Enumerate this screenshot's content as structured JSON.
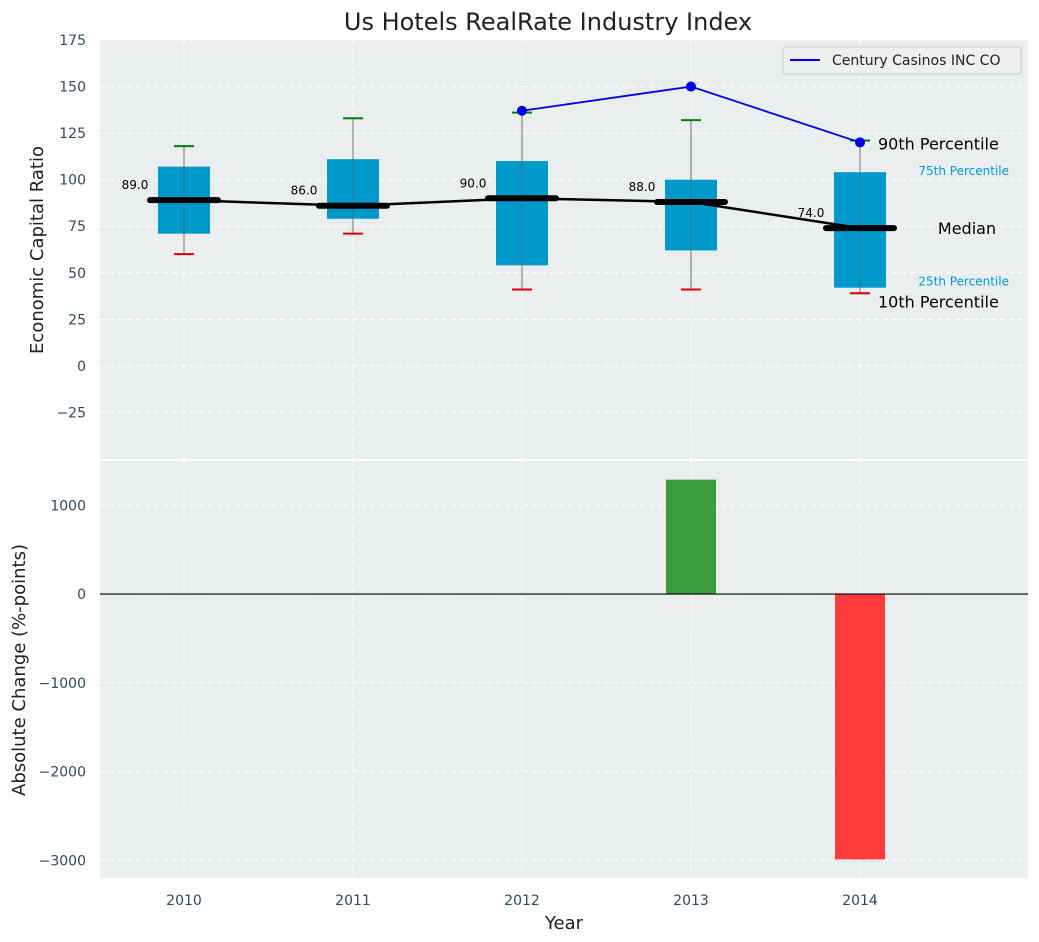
{
  "chart_data": [
    {
      "type": "box",
      "title": "Us Hotels RealRate Industry Index",
      "ylabel": "Economic Capital Ratio",
      "ylim": [
        -50,
        175
      ],
      "yticks": [
        -25,
        0,
        25,
        50,
        75,
        100,
        125,
        150,
        175
      ],
      "ytick_labels": [
        "−25",
        "0",
        "25",
        "50",
        "75",
        "100",
        "125",
        "150",
        "175"
      ],
      "categories": [
        "2010",
        "2011",
        "2012",
        "2013",
        "2014"
      ],
      "boxes": [
        {
          "year": "2010",
          "p10": 60,
          "p25": 71,
          "median": 89,
          "p75": 107,
          "p90": 118,
          "median_label": "89.0"
        },
        {
          "year": "2011",
          "p10": 71,
          "p25": 79,
          "median": 86,
          "p75": 111,
          "p90": 133,
          "median_label": "86.0"
        },
        {
          "year": "2012",
          "p10": 41,
          "p25": 54,
          "median": 90,
          "p75": 110,
          "p90": 136,
          "median_label": "90.0"
        },
        {
          "year": "2013",
          "p10": 41,
          "p25": 62,
          "median": 88,
          "p75": 100,
          "p90": 132,
          "median_label": "88.0"
        },
        {
          "year": "2014",
          "p10": 39,
          "p25": 42,
          "median": 74,
          "p75": 104,
          "p90": 121,
          "median_label": "74.0"
        }
      ],
      "series": [
        {
          "name": "Century Casinos INC CO",
          "x": [
            "2012",
            "2013",
            "2014"
          ],
          "values": [
            137,
            150,
            120
          ],
          "color": "#0000ee"
        }
      ],
      "annotations": {
        "p90": "90th Percentile",
        "p75": "75th Percentile",
        "median": "Median",
        "p25": "25th Percentile",
        "p10": "10th Percentile"
      },
      "legend": "top-right",
      "grid": true,
      "colors": {
        "box": "#0099cc",
        "median_line": "#000000",
        "p90_cap": "#008000",
        "p10_cap": "#dd0000",
        "background": "#eaeeee"
      }
    },
    {
      "type": "bar",
      "ylabel": "Absolute Change (%-points)",
      "xlabel": "Year",
      "ylim": [
        -3200,
        1500
      ],
      "yticks": [
        -3000,
        -2000,
        -1000,
        0,
        1000
      ],
      "ytick_labels": [
        "−3000",
        "−2000",
        "−1000",
        "0",
        "1000"
      ],
      "categories": [
        "2010",
        "2011",
        "2012",
        "2013",
        "2014"
      ],
      "values": [
        null,
        null,
        null,
        1290,
        -2990
      ],
      "grid": true,
      "colors": {
        "positive": "#3a9c3a",
        "negative": "#ff3b3b"
      }
    }
  ]
}
